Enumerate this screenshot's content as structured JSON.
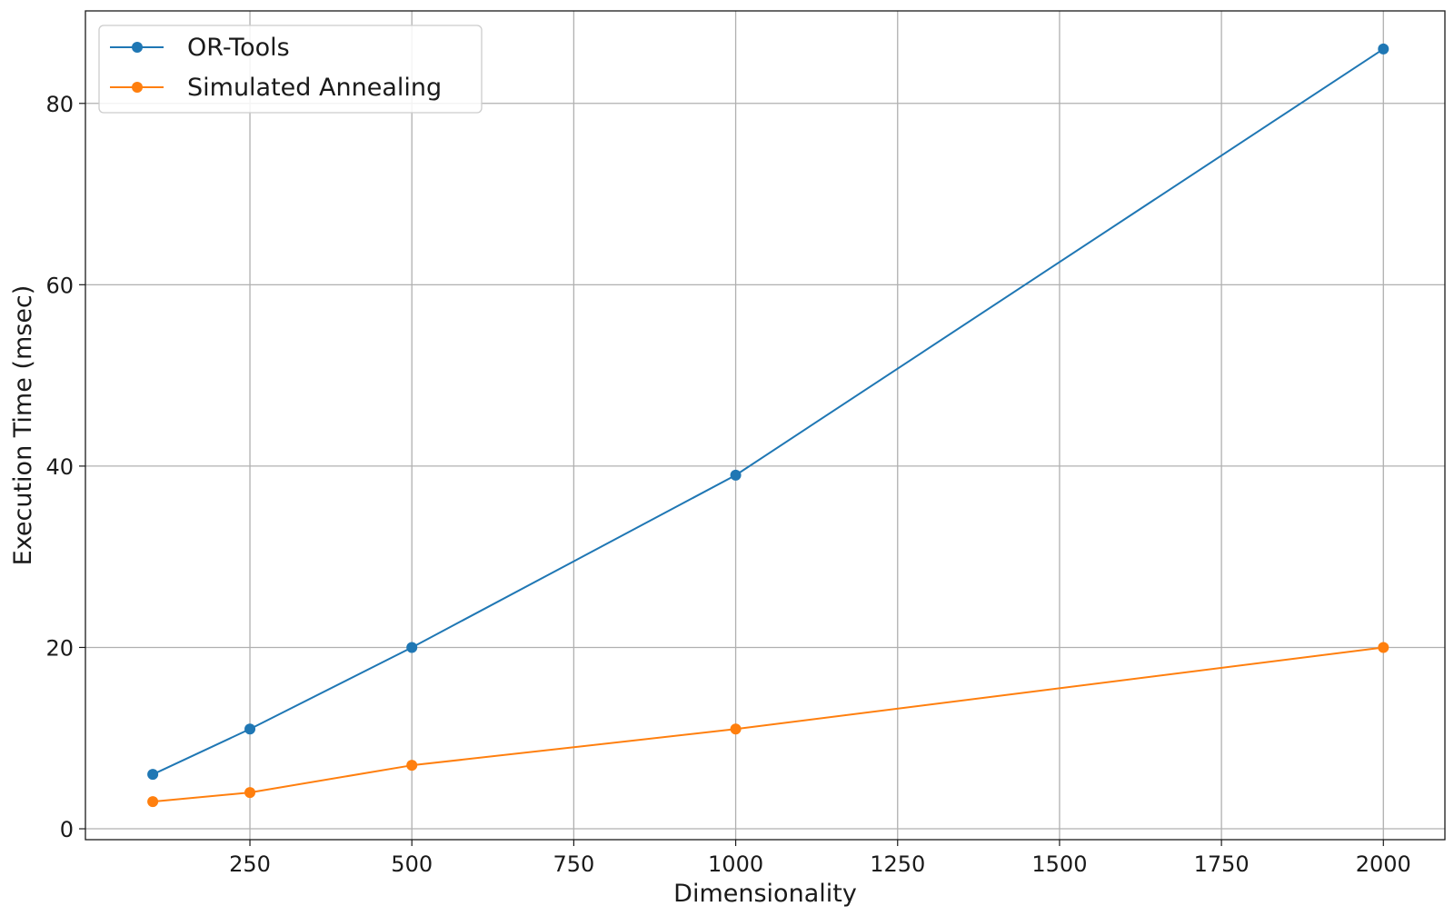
{
  "chart_data": {
    "type": "line",
    "title": "",
    "xlabel": "Dimensionality",
    "ylabel": "Execution Time (msec)",
    "x": [
      100,
      250,
      500,
      1000,
      2000
    ],
    "xlim": [
      -4,
      2095
    ],
    "ylim": [
      -1.2,
      90.2
    ],
    "xticks": [
      250,
      500,
      750,
      1000,
      1250,
      1500,
      1750,
      2000
    ],
    "yticks": [
      0,
      20,
      40,
      60,
      80
    ],
    "grid": true,
    "legend_position": "top-left",
    "series": [
      {
        "name": "OR-Tools",
        "color": "#1f77b4",
        "marker": "circle",
        "values": [
          6,
          11,
          20,
          39,
          86
        ]
      },
      {
        "name": "Simulated Annealing",
        "color": "#ff7f0e",
        "marker": "circle",
        "values": [
          3,
          4,
          7,
          11,
          20
        ]
      }
    ]
  }
}
